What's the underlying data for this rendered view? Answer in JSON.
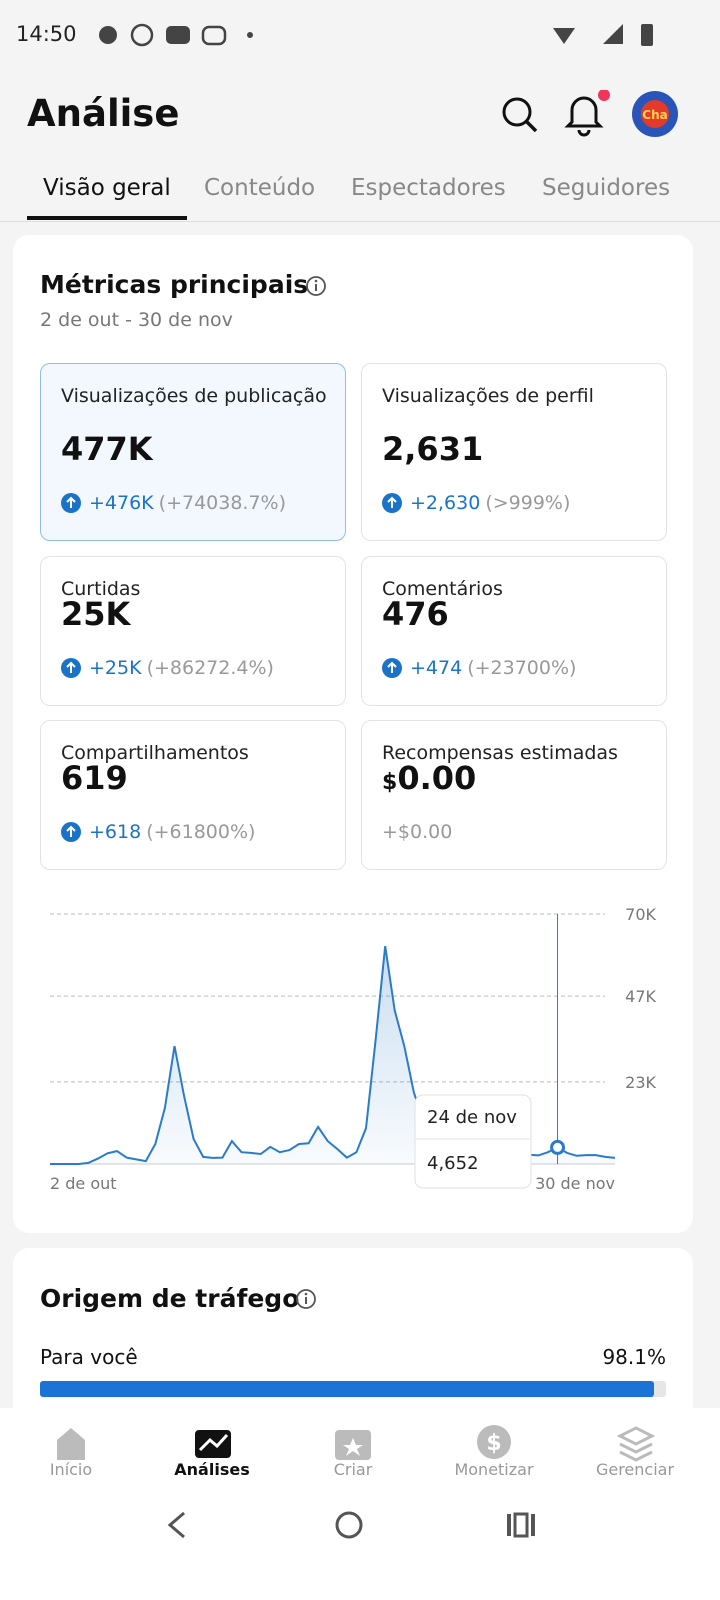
{
  "status_bar": {
    "time": "14:50"
  },
  "header": {
    "title": "Análise"
  },
  "tabs": [
    "Visão geral",
    "Conteúdo",
    "Espectadores",
    "Seguidores"
  ],
  "metrics_card": {
    "title": "Métricas principais",
    "range": "2 de out - 30 de nov",
    "metrics": [
      {
        "label": "Visualizações de publicação",
        "value": "477K",
        "change": "+476K",
        "pct": "(+74038.7%)"
      },
      {
        "label": "Visualizações de perfil",
        "value": "2,631",
        "change": "+2,630",
        "pct": "(>999%)"
      },
      {
        "label": "Curtidas",
        "value": "25K",
        "change": "+25K",
        "pct": "(+86272.4%)"
      },
      {
        "label": "Comentários",
        "value": "476",
        "change": "+474",
        "pct": "(+23700%)"
      },
      {
        "label": "Compartilhamentos",
        "value": "619",
        "change": "+618",
        "pct": "(+61800%)"
      },
      {
        "label": "Recompensas estimadas",
        "currency": "$",
        "value": "0.00",
        "plain_change": "+$0.00"
      }
    ]
  },
  "chart_data": {
    "type": "area",
    "color": "#2a7bc8",
    "x": [
      "2 de out",
      null,
      null,
      null,
      null,
      null,
      null,
      null,
      null,
      null,
      null,
      null,
      null,
      null,
      null,
      null,
      null,
      null,
      null,
      null,
      null,
      null,
      null,
      null,
      null,
      null,
      null,
      null,
      null,
      null,
      null,
      null,
      null,
      null,
      null,
      null,
      null,
      null,
      null,
      null,
      null,
      null,
      null,
      null,
      null,
      null,
      null,
      null,
      null,
      null,
      null,
      null,
      null,
      null,
      null,
      null,
      null,
      null,
      null,
      "30 de nov"
    ],
    "values": [
      0,
      0,
      0,
      0,
      300,
      1500,
      3000,
      3600,
      1800,
      1300,
      800,
      5600,
      15700,
      33000,
      19000,
      7000,
      2000,
      1700,
      1800,
      6400,
      3300,
      3100,
      2800,
      4800,
      3300,
      3900,
      5600,
      5800,
      10400,
      6400,
      4200,
      1800,
      3300,
      10000,
      34700,
      61000,
      43000,
      33000,
      20000,
      12000,
      8000,
      6000,
      5000,
      4500,
      4000,
      3800,
      3500,
      3200,
      3000,
      2800,
      2600,
      2400,
      3300,
      4652,
      3100,
      2300,
      2500,
      2500,
      2000,
      1700
    ],
    "ylim": [
      0,
      70000
    ],
    "yticks": [
      {
        "value": 23000,
        "label": "23K"
      },
      {
        "value": 47000,
        "label": "47K"
      },
      {
        "value": 70000,
        "label": "70K"
      }
    ],
    "grid": true,
    "tooltip": {
      "date": "24 de nov",
      "label": "4,652"
    }
  },
  "traffic_card": {
    "title": "Origem de tráfego",
    "sources": [
      {
        "name": "Para você",
        "value": 98.1,
        "label": "98.1%"
      }
    ]
  },
  "bottom_nav": [
    "Início",
    "Análises",
    "Criar",
    "Monetizar",
    "Gerenciar"
  ]
}
